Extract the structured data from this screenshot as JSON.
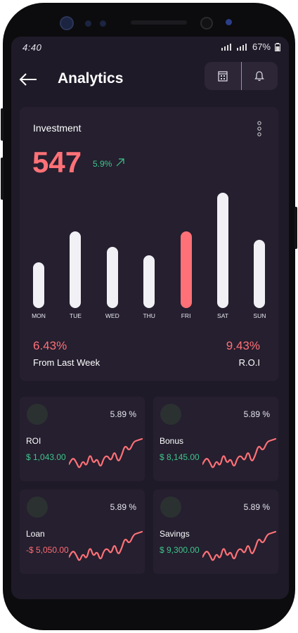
{
  "status": {
    "time": "4:40",
    "battery": "67%"
  },
  "header": {
    "title": "Analytics"
  },
  "investment": {
    "title": "Investment",
    "value": "547",
    "change": "5.9%",
    "chart_data": {
      "type": "bar",
      "categories": [
        "MON",
        "TUE",
        "WED",
        "THU",
        "FRI",
        "SAT",
        "SUN"
      ],
      "values": [
        32,
        54,
        43,
        37,
        54,
        81,
        48
      ],
      "highlight_index": 4,
      "ylim": [
        0,
        81
      ],
      "colors": {
        "bar": "#f1f0f4",
        "highlight": "#ff7177"
      }
    },
    "left_stat": {
      "value": "6.43%",
      "label": "From Last Week"
    },
    "right_stat": {
      "value": "9.43%",
      "label": "R.O.I"
    }
  },
  "cards": [
    {
      "name": "ROI",
      "pct": "5.89 %",
      "amount": "$ 1,043.00",
      "amount_color": "#3ec58a"
    },
    {
      "name": "Bonus",
      "pct": "5.89 %",
      "amount": "$ 8,145.00",
      "amount_color": "#3ec58a"
    },
    {
      "name": "Loan",
      "pct": "5.89 %",
      "amount": "-$ 5,050.00",
      "amount_color": "#ff6b73"
    },
    {
      "name": "Savings",
      "pct": "5.89 %",
      "amount": "$ 9,300.00",
      "amount_color": "#3ec58a"
    }
  ],
  "colors": {
    "accent": "#ff7177",
    "positive": "#3ec58a",
    "card_bg": "#251f2f",
    "screen_bg": "#1f1a28"
  }
}
